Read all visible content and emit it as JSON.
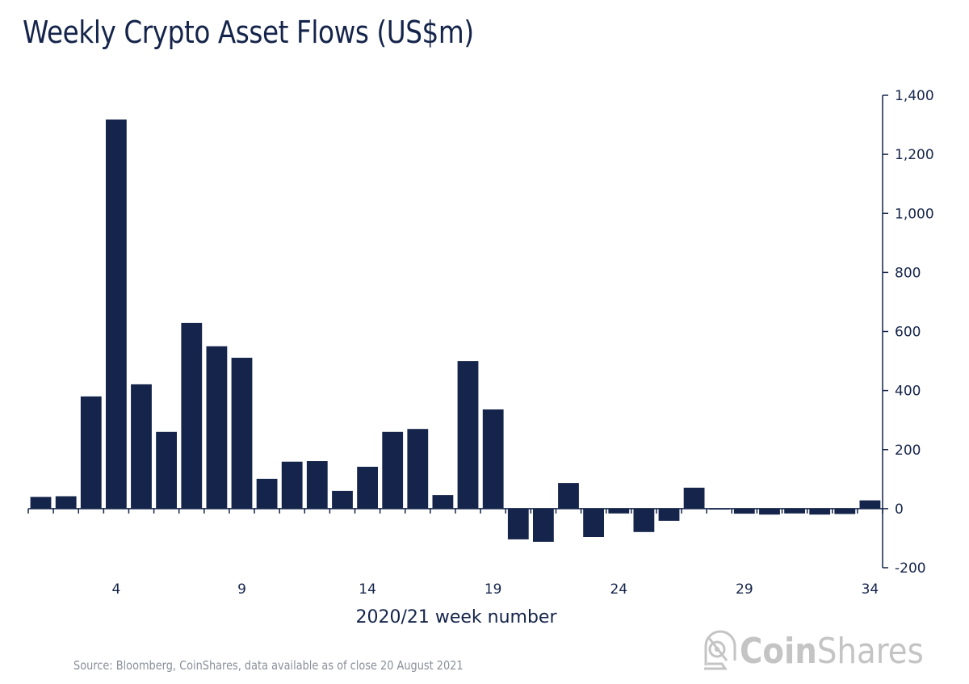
{
  "chart_data": {
    "type": "bar",
    "title": "Weekly Crypto Asset Flows (US$m)",
    "xlabel": "2020/21 week number",
    "ylabel": "",
    "ylim": [
      -200,
      1400
    ],
    "yticks": [
      -200,
      0,
      200,
      400,
      600,
      800,
      1000,
      1200,
      1400
    ],
    "ytick_labels": [
      "-200",
      "0",
      "200",
      "400",
      "600",
      "800",
      "1,000",
      "1,200",
      "1,400"
    ],
    "y_axis_position": "right",
    "xtick_labels": [
      "4",
      "9",
      "14",
      "19",
      "24",
      "29",
      "34"
    ],
    "xtick_values": [
      4,
      9,
      14,
      19,
      24,
      29,
      34
    ],
    "grid": false,
    "legend": "none",
    "bar_color": "#15244a",
    "categories": [
      1,
      2,
      3,
      4,
      5,
      6,
      7,
      8,
      9,
      10,
      11,
      12,
      13,
      14,
      15,
      16,
      17,
      18,
      19,
      20,
      21,
      22,
      23,
      24,
      25,
      26,
      27,
      28,
      29,
      30,
      31,
      32,
      33,
      34
    ],
    "values": [
      40,
      42,
      380,
      1318,
      421,
      260,
      629,
      550,
      511,
      101,
      159,
      161,
      60,
      142,
      260,
      270,
      46,
      500,
      336,
      -104,
      -112,
      87,
      -96,
      -16,
      -79,
      -41,
      71,
      -3,
      -17,
      -20,
      -16,
      -20,
      -18,
      28
    ]
  },
  "source_note": "Source: Bloomberg, CoinShares, data available as of close 20 August 2021",
  "logo": {
    "bold": "Coin",
    "regular": "Shares",
    "icon": "astronaut-helmet-icon"
  }
}
